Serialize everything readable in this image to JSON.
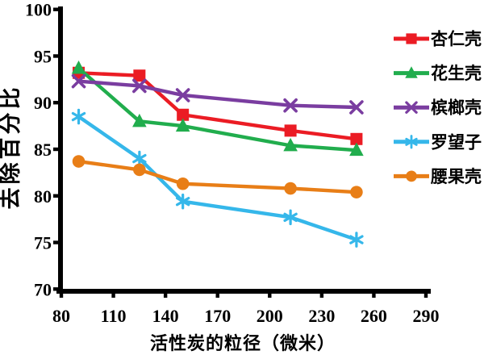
{
  "chart_data": {
    "type": "line",
    "title": "",
    "xlabel": "活性炭的粒径（微米）",
    "ylabel": "去除百分比",
    "x": [
      90,
      125,
      150,
      212,
      250
    ],
    "xlim": [
      80,
      290
    ],
    "ylim": [
      70,
      100
    ],
    "x_ticks": [
      80,
      110,
      140,
      170,
      200,
      230,
      260,
      290
    ],
    "y_ticks": [
      70,
      75,
      80,
      85,
      90,
      95,
      100
    ],
    "grid": false,
    "legend_position": "right",
    "axis_color": "#000000",
    "background": "#ffffff",
    "series": [
      {
        "name": "杏仁壳",
        "marker": "square",
        "color": "#EB1C24",
        "values": [
          93.2,
          92.9,
          88.7,
          87.0,
          86.1
        ]
      },
      {
        "name": "花生壳",
        "marker": "triangle",
        "color": "#21AD4D",
        "values": [
          93.7,
          88.0,
          87.5,
          85.4,
          84.9
        ]
      },
      {
        "name": "槟榔壳",
        "marker": "x",
        "color": "#7A3DA0",
        "values": [
          92.3,
          91.8,
          90.8,
          89.7,
          89.5
        ]
      },
      {
        "name": "罗望子",
        "marker": "asterisk",
        "color": "#35B7EA",
        "values": [
          88.5,
          84.0,
          79.4,
          77.7,
          75.3
        ]
      },
      {
        "name": "腰果壳",
        "marker": "circle",
        "color": "#E87E17",
        "values": [
          83.7,
          82.8,
          81.3,
          80.8,
          80.4
        ]
      }
    ]
  }
}
